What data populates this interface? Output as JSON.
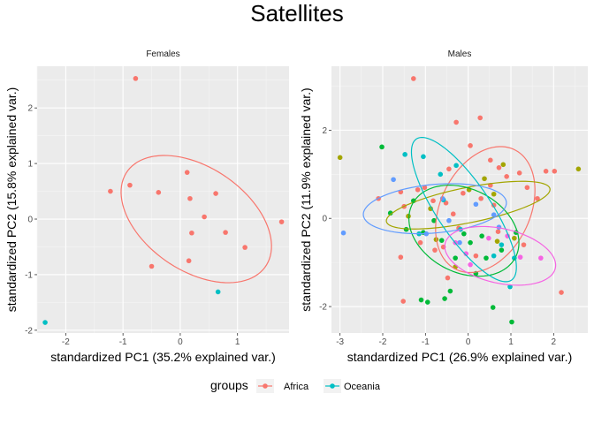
{
  "title": "Satellites",
  "legend": {
    "title": "groups",
    "entries": [
      {
        "label": "Africa",
        "color": "#F8766D"
      },
      {
        "label": "Oceania",
        "color": "#00BFC4"
      }
    ]
  },
  "colors": {
    "Africa": "#F8766D",
    "Olive": "#A3A500",
    "Green": "#00BA38",
    "Oceania": "#00BFC4",
    "Blue": "#619CFF",
    "Magenta": "#F564E3"
  },
  "chart_data": [
    {
      "type": "scatter",
      "panel": "Females",
      "xlabel": "standardized PC1 (35.2% explained var.)",
      "ylabel": "standardized PC2 (15.8% explained var.)",
      "xlim": [
        -2.5,
        1.9
      ],
      "ylim": [
        -2.05,
        2.75
      ],
      "xticks": [
        -2,
        -1,
        0,
        1
      ],
      "yticks": [
        -2,
        -1,
        0,
        1,
        2
      ],
      "series": [
        {
          "name": "Africa",
          "color": "#F8766D",
          "points": [
            [
              -0.78,
              2.53
            ],
            [
              -1.22,
              0.5
            ],
            [
              -0.88,
              0.61
            ],
            [
              -0.38,
              0.48
            ],
            [
              0.12,
              0.84
            ],
            [
              0.17,
              0.37
            ],
            [
              0.62,
              0.46
            ],
            [
              0.42,
              0.04
            ],
            [
              0.2,
              -0.25
            ],
            [
              0.79,
              -0.24
            ],
            [
              1.13,
              -0.51
            ],
            [
              1.77,
              -0.05
            ],
            [
              0.15,
              -0.75
            ],
            [
              -0.5,
              -0.85
            ]
          ],
          "ellipse": {
            "cx": 0.28,
            "cy": 0.0,
            "rx": 1.48,
            "ry": 0.92,
            "angle": -36
          }
        },
        {
          "name": "Oceania",
          "color": "#00BFC4",
          "points": [
            [
              0.66,
              -1.31
            ],
            [
              -2.36,
              -1.86
            ]
          ]
        }
      ]
    },
    {
      "type": "scatter",
      "panel": "Males",
      "xlabel": "standardized PC1 (26.9% explained var.)",
      "ylabel": "standardized PC2 (11.9% explained var.)",
      "xlim": [
        -3.2,
        2.8
      ],
      "ylim": [
        -2.6,
        3.45
      ],
      "xticks": [
        -3,
        -2,
        -1,
        0,
        1,
        2
      ],
      "yticks": [
        -2,
        0,
        2
      ],
      "series": [
        {
          "name": "Africa",
          "color": "#F8766D",
          "points": [
            [
              -1.28,
              3.17
            ],
            [
              0.28,
              2.28
            ],
            [
              -0.28,
              2.18
            ],
            [
              0.52,
              1.32
            ],
            [
              -0.45,
              1.12
            ],
            [
              0.05,
              1.65
            ],
            [
              0.72,
              1.15
            ],
            [
              1.2,
              1.03
            ],
            [
              1.82,
              1.07
            ],
            [
              2.02,
              1.07
            ],
            [
              1.62,
              0.45
            ],
            [
              0.9,
              0.95
            ],
            [
              0.52,
              0.75
            ],
            [
              0.3,
              0.45
            ],
            [
              0.6,
              0.3
            ],
            [
              -0.12,
              0.57
            ],
            [
              -0.52,
              0.35
            ],
            [
              -0.82,
              0.4
            ],
            [
              -1.02,
              0.7
            ],
            [
              -1.18,
              0.65
            ],
            [
              -1.58,
              0.6
            ],
            [
              -2.1,
              0.45
            ],
            [
              -1.5,
              0.27
            ],
            [
              -0.22,
              -0.22
            ],
            [
              0.7,
              -0.3
            ],
            [
              1.3,
              -0.6
            ],
            [
              -0.58,
              -0.65
            ],
            [
              -1.58,
              -0.88
            ],
            [
              -1.12,
              -0.55
            ],
            [
              -0.78,
              -0.72
            ],
            [
              0.18,
              -0.85
            ],
            [
              -0.48,
              -1.35
            ],
            [
              -1.52,
              -1.88
            ],
            [
              2.18,
              -1.68
            ],
            [
              1.38,
              0.7
            ],
            [
              -0.35,
              0.1
            ]
          ],
          "ellipse": {
            "cx": 0.4,
            "cy": 0.2,
            "rx": 1.52,
            "ry": 1.04,
            "angle": 62
          }
        },
        {
          "name": "Olive",
          "color": "#A3A500",
          "points": [
            [
              -3.0,
              1.38
            ],
            [
              2.58,
              1.12
            ],
            [
              0.82,
              1.22
            ],
            [
              0.38,
              0.9
            ],
            [
              0.02,
              0.65
            ],
            [
              -0.88,
              0.22
            ],
            [
              0.68,
              -0.52
            ],
            [
              1.08,
              -0.45
            ],
            [
              -0.3,
              -1.1
            ],
            [
              -0.75,
              -0.48
            ],
            [
              0.6,
              0.55
            ],
            [
              -1.4,
              0.05
            ]
          ],
          "ellipse": {
            "cx": 0.0,
            "cy": 0.3,
            "rx": 1.95,
            "ry": 0.4,
            "angle": 11
          }
        },
        {
          "name": "Green",
          "color": "#00BA38",
          "points": [
            [
              -2.02,
              1.62
            ],
            [
              -1.82,
              0.12
            ],
            [
              -1.28,
              0.4
            ],
            [
              -1.05,
              -0.32
            ],
            [
              -0.62,
              -0.5
            ],
            [
              -0.1,
              -0.35
            ],
            [
              0.32,
              -0.4
            ],
            [
              0.42,
              -0.9
            ],
            [
              0.78,
              -0.72
            ],
            [
              1.12,
              -0.32
            ],
            [
              1.02,
              -2.35
            ],
            [
              0.58,
              -2.02
            ],
            [
              -0.55,
              -1.82
            ],
            [
              -0.95,
              -1.9
            ],
            [
              -1.1,
              -1.85
            ],
            [
              -0.42,
              -1.65
            ],
            [
              -0.3,
              -0.9
            ],
            [
              -1.45,
              -0.25
            ],
            [
              0.05,
              -0.55
            ],
            [
              0.18,
              -1.25
            ],
            [
              -0.8,
              -0.05
            ]
          ],
          "ellipse": {
            "cx": -0.1,
            "cy": -0.28,
            "rx": 1.35,
            "ry": 0.95,
            "angle": -25
          }
        },
        {
          "name": "Oceania",
          "color": "#00BFC4",
          "points": [
            [
              -1.05,
              1.4
            ],
            [
              -0.65,
              1.0
            ],
            [
              -0.28,
              1.2
            ],
            [
              -0.58,
              0.42
            ],
            [
              0.6,
              -0.85
            ],
            [
              1.08,
              -0.9
            ],
            [
              0.98,
              -1.55
            ],
            [
              0.78,
              -0.6
            ],
            [
              -0.18,
              -0.25
            ],
            [
              -1.15,
              -0.35
            ],
            [
              -1.48,
              1.45
            ]
          ],
          "ellipse": {
            "cx": -0.1,
            "cy": 0.2,
            "rx": 1.95,
            "ry": 0.62,
            "angle": -55
          }
        },
        {
          "name": "Blue",
          "color": "#619CFF",
          "points": [
            [
              -2.92,
              -0.33
            ],
            [
              -1.75,
              0.88
            ],
            [
              -0.6,
              0.45
            ],
            [
              0.18,
              0.32
            ],
            [
              0.6,
              0.08
            ],
            [
              -0.2,
              -0.55
            ],
            [
              -0.98,
              -0.35
            ],
            [
              0.72,
              -0.2
            ],
            [
              -0.45,
              -0.05
            ]
          ],
          "ellipse": {
            "cx": -0.78,
            "cy": 0.22,
            "rx": 1.68,
            "ry": 0.55,
            "angle": 5
          }
        },
        {
          "name": "Magenta",
          "color": "#F564E3",
          "points": [
            [
              1.7,
              -0.9
            ],
            [
              0.92,
              -0.4
            ],
            [
              1.22,
              -0.88
            ],
            [
              -0.05,
              -0.8
            ],
            [
              -0.3,
              -0.55
            ],
            [
              0.48,
              -0.45
            ],
            [
              0.05,
              -1.05
            ]
          ],
          "ellipse": {
            "cx": 0.75,
            "cy": -0.85,
            "rx": 1.32,
            "ry": 0.62,
            "angle": -12
          }
        }
      ]
    }
  ]
}
